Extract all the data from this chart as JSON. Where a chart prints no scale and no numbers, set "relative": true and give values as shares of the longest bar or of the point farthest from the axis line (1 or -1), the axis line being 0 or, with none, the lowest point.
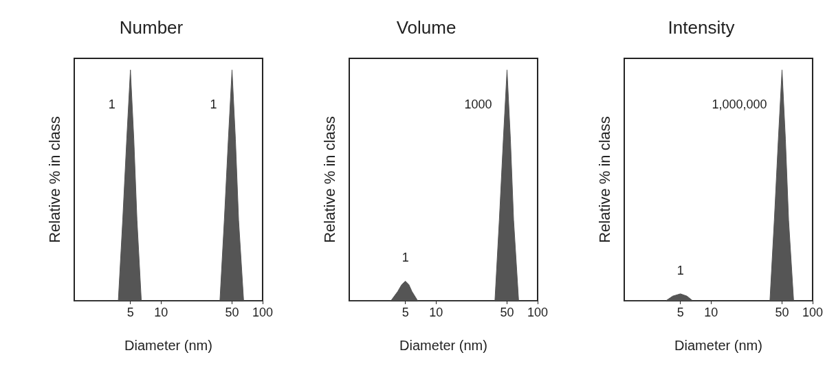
{
  "chart_data": [
    {
      "type": "area",
      "title": "Number",
      "xlabel": "Diameter (nm)",
      "ylabel": "Relative % in class",
      "relative": true,
      "log": "x",
      "xlim": [
        1.4,
        100
      ],
      "xticks": [
        5,
        10,
        50,
        100
      ],
      "grid": false,
      "tick_labels": "x",
      "series": [
        {
          "color": "#555555",
          "x": [
            1.4,
            3.8,
            4.2,
            4.6,
            5,
            5.4,
            5.8,
            6.4,
            38,
            42,
            46,
            50,
            54,
            58,
            65,
            100
          ],
          "values": [
            0,
            0,
            0.35,
            0.7,
            1,
            0.7,
            0.35,
            0,
            0,
            0.35,
            0.7,
            1,
            0.7,
            0.35,
            0,
            0
          ]
        }
      ],
      "annotations": [
        "1",
        "1"
      ]
    },
    {
      "type": "area",
      "title": "Volume",
      "xlabel": "Diameter (nm)",
      "ylabel": "Relative % in class",
      "relative": true,
      "log": "x",
      "xlim": [
        1.4,
        100
      ],
      "xticks": [
        5,
        10,
        50,
        100
      ],
      "grid": false,
      "tick_labels": "x",
      "series": [
        {
          "color": "#555555",
          "x": [
            1.4,
            3.6,
            4.2,
            4.6,
            5,
            5.4,
            5.8,
            6.6,
            38,
            42,
            46,
            50,
            54,
            58,
            65,
            100
          ],
          "values": [
            0,
            0,
            0.04,
            0.07,
            0.085,
            0.07,
            0.04,
            0,
            0,
            0.35,
            0.7,
            1,
            0.7,
            0.35,
            0,
            0
          ]
        }
      ],
      "annotations": [
        "1",
        "1000"
      ]
    },
    {
      "type": "area",
      "title": "Intensity",
      "xlabel": "Diameter (nm)",
      "ylabel": "Relative % in class",
      "relative": true,
      "log": "x",
      "xlim": [
        1.4,
        100
      ],
      "xticks": [
        5,
        10,
        50,
        100
      ],
      "grid": false,
      "tick_labels": "x",
      "series": [
        {
          "color": "#555555",
          "x": [
            1.4,
            3.6,
            4.2,
            5,
            5.8,
            6.6,
            38,
            42,
            46,
            50,
            54,
            58,
            65,
            100
          ],
          "values": [
            0,
            0,
            0.02,
            0.03,
            0.02,
            0,
            0,
            0.35,
            0.7,
            1,
            0.7,
            0.35,
            0,
            0
          ]
        }
      ],
      "annotations": [
        "1",
        "1,000,000"
      ]
    }
  ]
}
